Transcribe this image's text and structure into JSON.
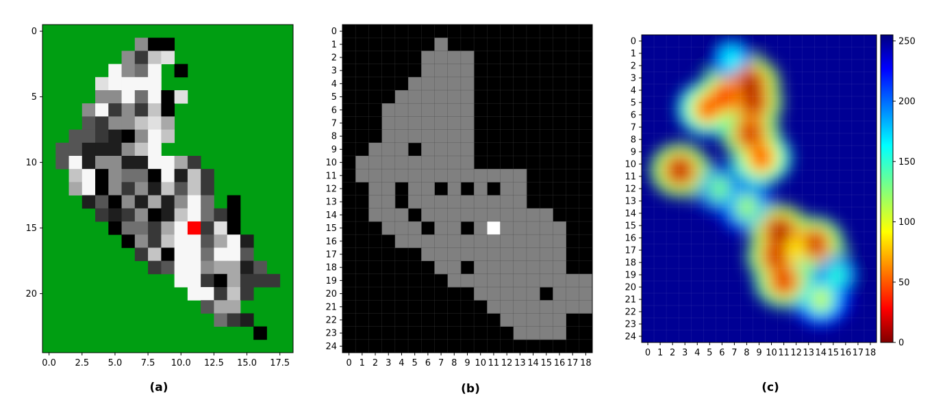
{
  "chart_data": [
    {
      "type": "heatmap",
      "panel_label": "(a)",
      "grid": {
        "rows": 25,
        "cols": 19
      },
      "x_ticks": [
        "0.0",
        "2.5",
        "5.0",
        "7.5",
        "10.0",
        "12.5",
        "15.0",
        "17.5"
      ],
      "x_tick_values": [
        0,
        2.5,
        5,
        7.5,
        10,
        12.5,
        15,
        17.5
      ],
      "y_ticks": [
        "0",
        "5",
        "10",
        "15",
        "20"
      ],
      "y_tick_values": [
        0,
        5,
        10,
        15,
        20
      ],
      "colors": {
        "background": "#009e12",
        "marker": "#ff0000",
        "cell_black": "#000000",
        "cell_white": "#ffffff"
      },
      "marker": {
        "row": 15,
        "col": 11
      },
      "palette": {
        "a": "#000000",
        "b": "#1e1e1e",
        "c": "#383838",
        "d": "#555555",
        "e": "#707070",
        "f": "#8c8c8c",
        "g": "#a8a8a8",
        "h": "#c4c4c4",
        "i": "#e0e0e0",
        "j": "#f7f7f7"
      },
      "cells": [
        "...................",
        ".......faa.........",
        "......fchi.........",
        ".....jfej.a........",
        "....ijjjj..........",
        "....ffjejai........",
        "...fjcfcha.........",
        "...dcffhig.........",
        "..ddcbafjh.........",
        ".ddbbbfhj..........",
        ".djbffbbjjgc.......",
        "..hjafeeajbhc......",
        "..gjafcfbhdhc......",
        "...bdafbgbfje.a....",
        "....cbcfabhjeca....",
        ".....aeecgjRcia....",
        "......afchjjdgjb...",
        ".......chajjejjd...",
        "........cdjjfggbd..",
        "..........jjcagccc.",
        "...........jjchc...",
        "............dgg....",
        ".............ecb...",
        "................a..",
        "..................."
      ]
    },
    {
      "type": "heatmap",
      "panel_label": "(b)",
      "grid": {
        "rows": 25,
        "cols": 19
      },
      "x_ticks": [
        "0",
        "1",
        "2",
        "3",
        "4",
        "5",
        "6",
        "7",
        "8",
        "9",
        "10",
        "11",
        "12",
        "13",
        "14",
        "15",
        "16",
        "17",
        "18"
      ],
      "y_ticks": [
        "0",
        "1",
        "2",
        "3",
        "4",
        "5",
        "6",
        "7",
        "8",
        "9",
        "10",
        "11",
        "12",
        "13",
        "14",
        "15",
        "16",
        "17",
        "18",
        "19",
        "20",
        "21",
        "22",
        "23",
        "24"
      ],
      "colors": {
        "background": "#000000",
        "region": "#808080",
        "hole": "#000000",
        "highlight": "#ffffff"
      },
      "highlight": {
        "row": 15,
        "col": 11
      },
      "mask": [
        "...................",
        ".......g...........",
        "......gggg.........",
        "......gggg.........",
        ".....ggggg.........",
        "....gggggg.........",
        "...ggggggg.........",
        "...ggggggg.........",
        "...ggggggg.........",
        "..ggg.gggg.........",
        ".ggggggggg.........",
        ".ggggggggggggg.....",
        "..gg.gg.g.g.gg.....",
        "..gg.ggggggggg.....",
        "..ggg.gggggggggg...",
        "...ggg.gg.ggggggg..",
        "....ggggggggggggg..",
        "......ggggggggggg..",
        ".......gg.ggggggg..",
        "........ggggggggggg",
        "..........ggggg.ggg",
        "...........gggggggg",
        "............ggggg..",
        ".............gggg..",
        "..................."
      ]
    },
    {
      "type": "heatmap",
      "panel_label": "(c)",
      "grid": {
        "rows": 25,
        "cols": 19
      },
      "colormap": "jet_r",
      "x_ticks": [
        "0",
        "1",
        "2",
        "3",
        "4",
        "5",
        "6",
        "7",
        "8",
        "9",
        "10",
        "11",
        "12",
        "13",
        "14",
        "15",
        "16",
        "17",
        "18"
      ],
      "y_ticks": [
        "0",
        "1",
        "2",
        "3",
        "4",
        "5",
        "6",
        "7",
        "8",
        "9",
        "10",
        "11",
        "12",
        "13",
        "14",
        "15",
        "16",
        "17",
        "18",
        "19",
        "20",
        "21",
        "22",
        "23",
        "24"
      ],
      "colorbar": {
        "min": 0,
        "max": 255,
        "ticks": [
          "0",
          "50",
          "100",
          "150",
          "200",
          "250"
        ],
        "tick_values": [
          0,
          50,
          100,
          150,
          200,
          250
        ]
      },
      "background_value": 250,
      "hot_spots": [
        {
          "row": 1.5,
          "col": 6.8,
          "value": 160
        },
        {
          "row": 3.5,
          "col": 8.3,
          "value": 10
        },
        {
          "row": 4.5,
          "col": 6.2,
          "value": 30
        },
        {
          "row": 5.0,
          "col": 8.5,
          "value": 15
        },
        {
          "row": 5.5,
          "col": 4.8,
          "value": 45
        },
        {
          "row": 7.5,
          "col": 8.3,
          "value": 20
        },
        {
          "row": 9.5,
          "col": 9.2,
          "value": 40
        },
        {
          "row": 10.5,
          "col": 2.6,
          "value": 15
        },
        {
          "row": 12.0,
          "col": 5.8,
          "value": 130
        },
        {
          "row": 13.5,
          "col": 8.0,
          "value": 120
        },
        {
          "row": 15.5,
          "col": 10.7,
          "value": 10
        },
        {
          "row": 17.5,
          "col": 10.4,
          "value": 20
        },
        {
          "row": 19.5,
          "col": 11.0,
          "value": 25
        },
        {
          "row": 16.5,
          "col": 13.5,
          "value": 20
        },
        {
          "row": 17.0,
          "col": 12.0,
          "value": 90
        },
        {
          "row": 21.0,
          "col": 14.0,
          "value": 110
        },
        {
          "row": 19.0,
          "col": 15.3,
          "value": 150
        }
      ]
    }
  ]
}
